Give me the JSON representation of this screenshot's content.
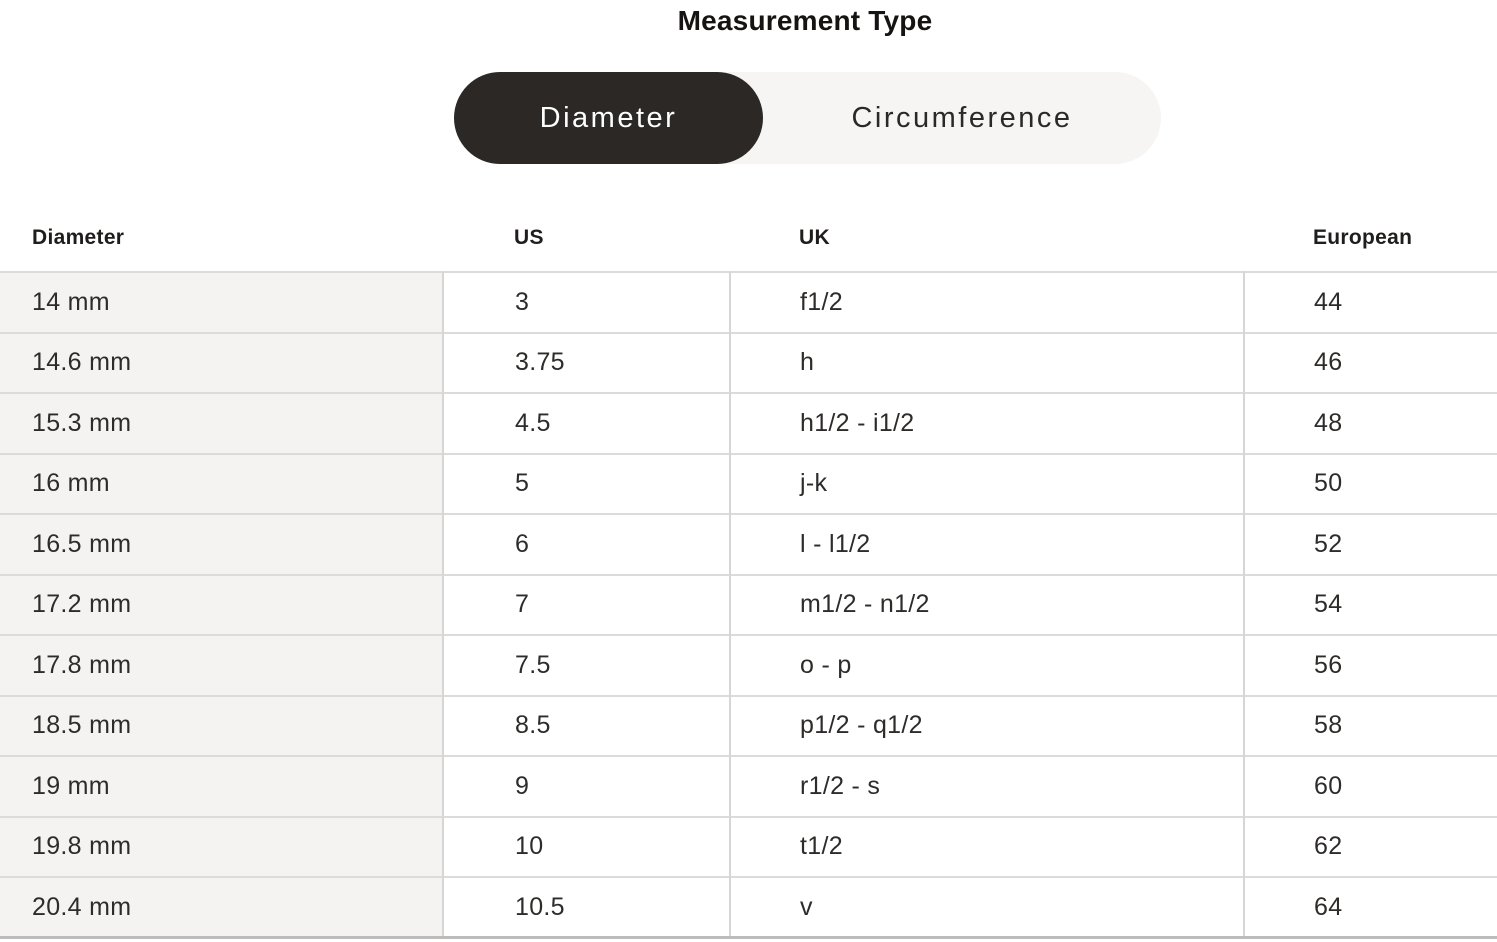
{
  "header": {
    "title": "Measurement Type"
  },
  "toggle": {
    "options": [
      {
        "label": "Diameter",
        "selected": true
      },
      {
        "label": "Circumference",
        "selected": false
      }
    ]
  },
  "table": {
    "columns": [
      "Diameter",
      "US",
      "UK",
      "European"
    ],
    "column_keys": [
      "diameter",
      "us",
      "uk",
      "european"
    ],
    "rows": [
      [
        "14 mm",
        "3",
        "f1/2",
        "44"
      ],
      [
        "14.6 mm",
        "3.75",
        "h",
        "46"
      ],
      [
        "15.3 mm",
        "4.5",
        "h1/2 - i1/2",
        "48"
      ],
      [
        "16 mm",
        "5",
        "j-k",
        "50"
      ],
      [
        "16.5 mm",
        "6",
        "l - l1/2",
        "52"
      ],
      [
        "17.2 mm",
        "7",
        "m1/2 - n1/2",
        "54"
      ],
      [
        "17.8 mm",
        "7.5",
        "o - p",
        "56"
      ],
      [
        "18.5 mm",
        "8.5",
        "p1/2 - q1/2",
        "58"
      ],
      [
        "19 mm",
        "9",
        "r1/2 - s",
        "60"
      ],
      [
        "19.8 mm",
        "10",
        "t1/2",
        "62"
      ],
      [
        "20.4 mm",
        "10.5",
        "v",
        "64"
      ]
    ]
  },
  "colors": {
    "selected_pill": "#2b2825",
    "toggle_background": "#f6f5f3",
    "shaded_column": "#f4f3f1",
    "row_divider": "#dcdbd9",
    "column_divider": "#d7d6d4",
    "table_bottom_border": "#bdbcba"
  }
}
